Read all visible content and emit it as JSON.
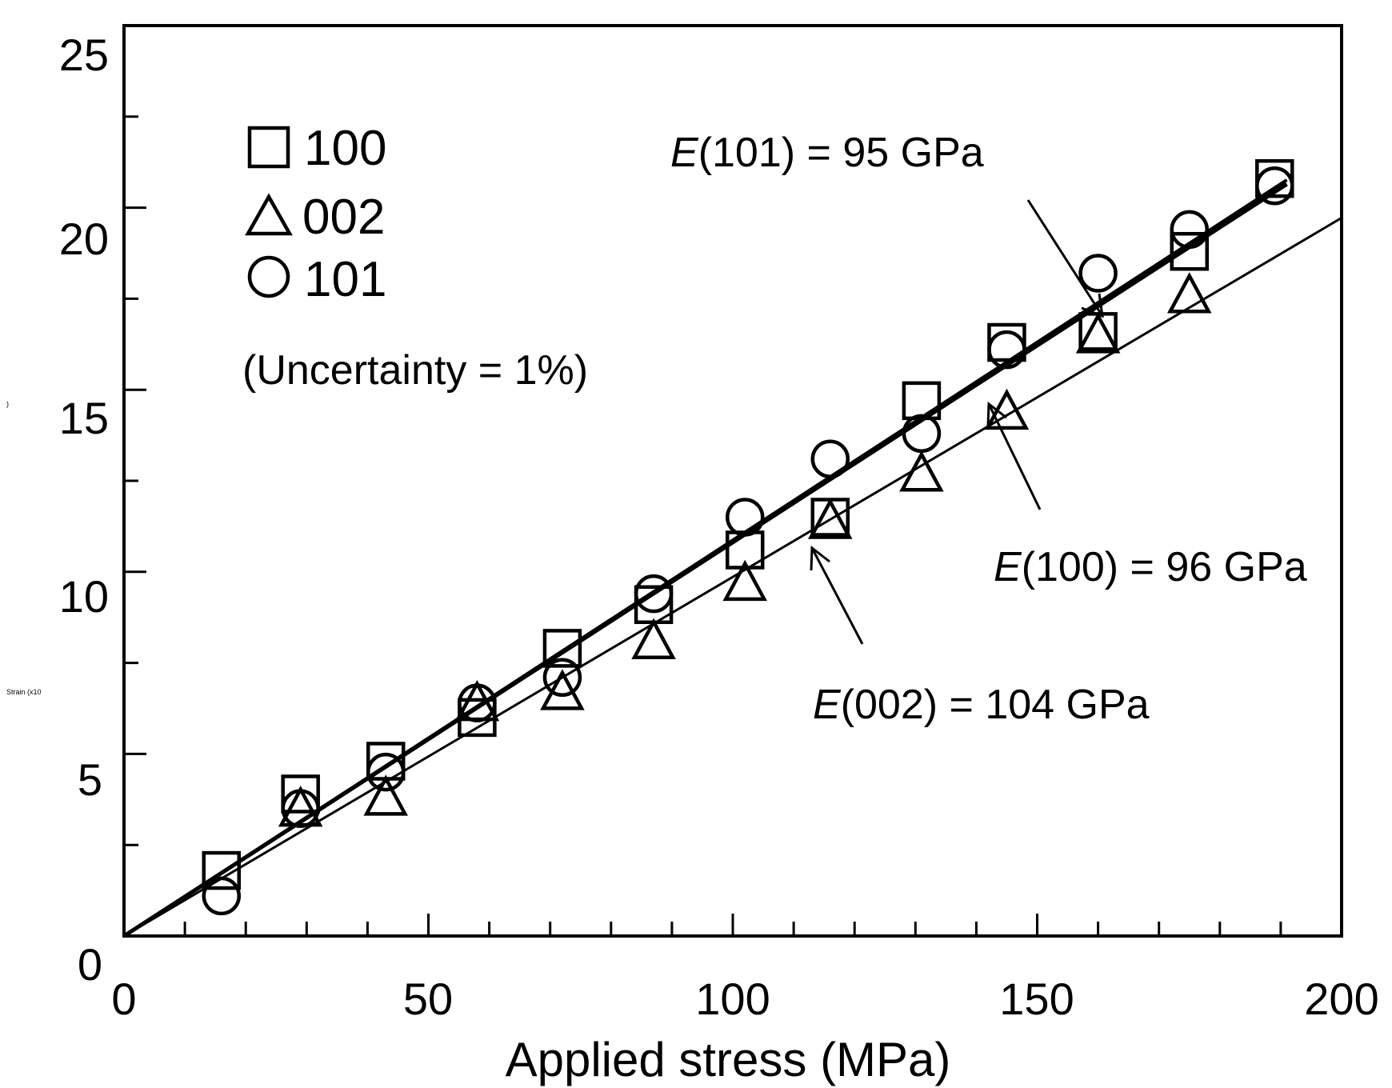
{
  "chart_data": {
    "type": "scatter",
    "title": "",
    "xlabel": "Applied stress (MPa)",
    "ylabel": "Strain (x10",
    "xlim": [
      0,
      200
    ],
    "ylim": [
      0,
      25
    ],
    "x_ticks": [
      0,
      50,
      100,
      150,
      200
    ],
    "y_ticks": [
      0,
      5,
      10,
      15,
      20,
      25
    ],
    "x_tick_labels": [
      "0",
      "50",
      "100",
      "150",
      "200"
    ],
    "y_tick_labels": [
      "0",
      "5",
      "10",
      "15",
      "20",
      "25"
    ],
    "series": [
      {
        "name": "100",
        "marker": "square",
        "x": [
          16,
          29,
          43,
          58,
          72,
          87,
          102,
          116,
          131,
          145,
          160,
          175,
          189
        ],
        "y": [
          1.8,
          3.9,
          4.8,
          6.0,
          7.9,
          9.1,
          10.6,
          11.5,
          14.7,
          16.3,
          16.6,
          18.8,
          20.8
        ],
        "fit_slope": 0.1087
      },
      {
        "name": "002",
        "marker": "triangle",
        "x": [
          29,
          43,
          58,
          72,
          87,
          102,
          116,
          131,
          145,
          160,
          175
        ],
        "y": [
          3.5,
          3.8,
          6.4,
          6.7,
          8.1,
          9.7,
          11.4,
          12.7,
          14.4,
          16.5,
          17.6
        ],
        "fit_slope": 0.0986
      },
      {
        "name": "101",
        "marker": "circle",
        "x": [
          16,
          29,
          43,
          58,
          72,
          87,
          102,
          116,
          131,
          145,
          160,
          175,
          189
        ],
        "y": [
          1.1,
          3.5,
          4.5,
          6.4,
          7.1,
          9.4,
          11.5,
          13.1,
          13.8,
          16.1,
          18.2,
          19.4,
          20.6
        ],
        "fit_slope": 0.1081
      }
    ],
    "legend": {
      "position": "top-left",
      "entries": [
        "100",
        "002",
        "101"
      ]
    },
    "note": "(Uncertainty = 1%)",
    "annotations": [
      {
        "prefix": "E",
        "text": "(101) = 95 GPa"
      },
      {
        "prefix": "E",
        "text": "(100) = 96 GPa"
      },
      {
        "prefix": "E",
        "text": "(002) = 104 GPa"
      }
    ],
    "tiny_marks": [
      "Strain (x10",
      ")"
    ]
  }
}
